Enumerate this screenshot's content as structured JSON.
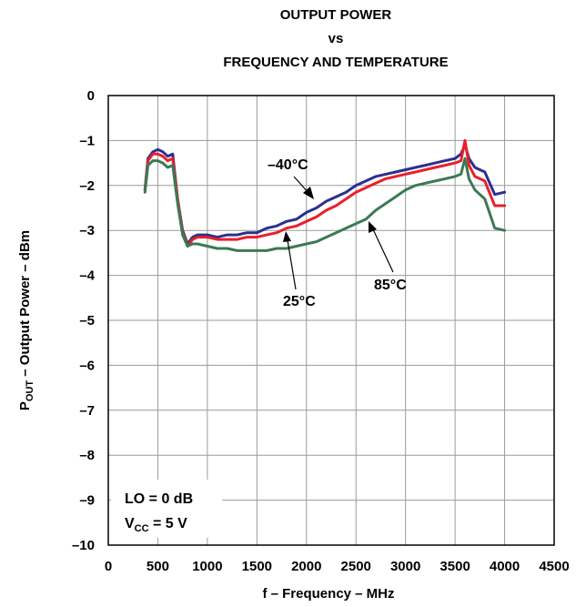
{
  "chart_data": {
    "type": "line",
    "title": [
      "OUTPUT POWER",
      "vs",
      "FREQUENCY AND TEMPERATURE"
    ],
    "xlabel": "f – Frequency – MHz",
    "ylabel_main": "P",
    "ylabel_sub": "OUT",
    "ylabel_rest": " – Output Power – dBm",
    "xlim": [
      0,
      4500
    ],
    "ylim": [
      -10,
      0
    ],
    "xticks": [
      0,
      500,
      1000,
      1500,
      2000,
      2500,
      3000,
      3500,
      4000,
      4500
    ],
    "xtick_labels": [
      "0",
      "500",
      "1000",
      "1500",
      "2000",
      "2500",
      "3000",
      "3500",
      "4000",
      "4500"
    ],
    "yticks": [
      0,
      -1,
      -2,
      -3,
      -4,
      -5,
      -6,
      -7,
      -8,
      -9,
      -10
    ],
    "ytick_labels": [
      "0",
      "–1",
      "–2",
      "–3",
      "–4",
      "–5",
      "–6",
      "–7",
      "–8",
      "–9",
      "–10"
    ],
    "grid": true,
    "series": [
      {
        "name": "–40°C",
        "color": "#2b2f8f",
        "x": [
          370,
          400,
          450,
          500,
          550,
          600,
          650,
          700,
          750,
          800,
          850,
          900,
          1000,
          1100,
          1200,
          1300,
          1400,
          1500,
          1600,
          1700,
          1800,
          1900,
          2000,
          2100,
          2200,
          2300,
          2400,
          2500,
          2600,
          2700,
          2800,
          2900,
          3000,
          3100,
          3200,
          3300,
          3400,
          3500,
          3560,
          3600,
          3640,
          3700,
          3800,
          3900,
          4000
        ],
        "y": [
          -2.1,
          -1.4,
          -1.25,
          -1.2,
          -1.25,
          -1.35,
          -1.3,
          -2.3,
          -3.0,
          -3.3,
          -3.15,
          -3.1,
          -3.1,
          -3.15,
          -3.1,
          -3.1,
          -3.05,
          -3.05,
          -2.95,
          -2.9,
          -2.8,
          -2.75,
          -2.6,
          -2.5,
          -2.35,
          -2.25,
          -2.15,
          -2.0,
          -1.9,
          -1.8,
          -1.75,
          -1.7,
          -1.65,
          -1.6,
          -1.55,
          -1.5,
          -1.45,
          -1.4,
          -1.3,
          -1.1,
          -1.4,
          -1.6,
          -1.7,
          -2.2,
          -2.15
        ]
      },
      {
        "name": "25°C",
        "color": "#e8202a",
        "x": [
          370,
          400,
          450,
          500,
          550,
          600,
          650,
          700,
          750,
          800,
          850,
          900,
          1000,
          1100,
          1200,
          1300,
          1400,
          1500,
          1600,
          1700,
          1800,
          1900,
          2000,
          2100,
          2200,
          2300,
          2400,
          2500,
          2600,
          2700,
          2800,
          2900,
          3000,
          3100,
          3200,
          3300,
          3400,
          3500,
          3560,
          3600,
          3640,
          3700,
          3800,
          3900,
          4000
        ],
        "y": [
          -2.1,
          -1.45,
          -1.3,
          -1.3,
          -1.35,
          -1.45,
          -1.4,
          -2.3,
          -3.05,
          -3.35,
          -3.2,
          -3.15,
          -3.15,
          -3.2,
          -3.2,
          -3.2,
          -3.15,
          -3.15,
          -3.1,
          -3.05,
          -2.95,
          -2.9,
          -2.8,
          -2.7,
          -2.55,
          -2.45,
          -2.3,
          -2.15,
          -2.05,
          -1.95,
          -1.85,
          -1.8,
          -1.75,
          -1.7,
          -1.65,
          -1.6,
          -1.55,
          -1.5,
          -1.45,
          -1.0,
          -1.55,
          -1.8,
          -1.9,
          -2.45,
          -2.45
        ]
      },
      {
        "name": "85°C",
        "color": "#3b7a52",
        "x": [
          370,
          400,
          450,
          500,
          550,
          600,
          650,
          700,
          750,
          800,
          850,
          900,
          1000,
          1100,
          1200,
          1300,
          1400,
          1500,
          1600,
          1700,
          1800,
          1900,
          2000,
          2100,
          2200,
          2300,
          2400,
          2500,
          2600,
          2700,
          2800,
          2900,
          3000,
          3100,
          3200,
          3300,
          3400,
          3500,
          3560,
          3600,
          3640,
          3700,
          3800,
          3900,
          4000
        ],
        "y": [
          -2.15,
          -1.55,
          -1.45,
          -1.45,
          -1.5,
          -1.6,
          -1.55,
          -2.4,
          -3.1,
          -3.35,
          -3.3,
          -3.3,
          -3.35,
          -3.4,
          -3.4,
          -3.45,
          -3.45,
          -3.45,
          -3.45,
          -3.4,
          -3.4,
          -3.35,
          -3.3,
          -3.25,
          -3.15,
          -3.05,
          -2.95,
          -2.85,
          -2.75,
          -2.55,
          -2.4,
          -2.25,
          -2.1,
          -2.0,
          -1.95,
          -1.9,
          -1.85,
          -1.8,
          -1.75,
          -1.4,
          -1.85,
          -2.1,
          -2.3,
          -2.95,
          -3.0
        ]
      }
    ],
    "annotations": {
      "neg40": "–40°C",
      "t25": "25°C",
      "t85": "85°C",
      "lo_label": "LO = 0 dB",
      "vcc_main": "V",
      "vcc_sub": "CC",
      "vcc_rest": " = 5 V"
    }
  }
}
